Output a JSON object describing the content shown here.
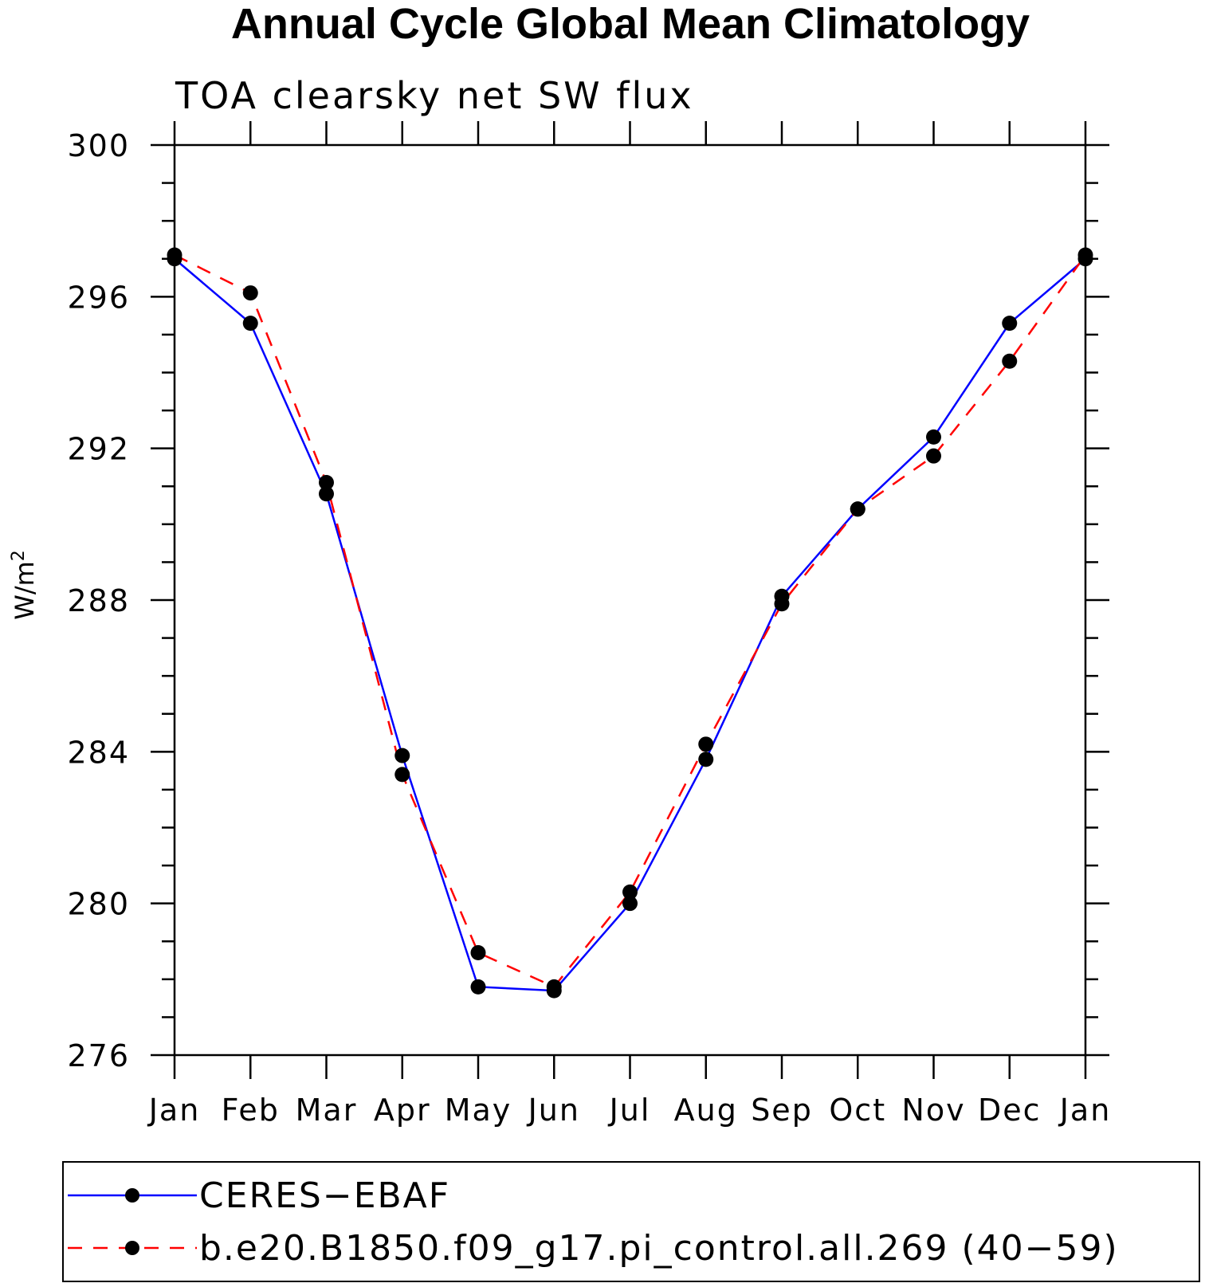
{
  "chart_data": {
    "type": "line",
    "title": "Annual Cycle Global Mean Climatology",
    "subtitle": "TOA clearsky net SW flux",
    "ylabel": "W/m",
    "ylabel_superscript": "2",
    "xlabel": "",
    "categories": [
      "Jan",
      "Feb",
      "Mar",
      "Apr",
      "May",
      "Jun",
      "Jul",
      "Aug",
      "Sep",
      "Oct",
      "Nov",
      "Dec",
      "Jan"
    ],
    "ylim": [
      276,
      300
    ],
    "yticks": [
      276,
      280,
      284,
      288,
      292,
      296,
      300
    ],
    "yticks_labels": [
      "276",
      "280",
      "284",
      "288",
      "292",
      "296",
      "300"
    ],
    "grid": false,
    "legend_position": "bottom",
    "series": [
      {
        "name": "CERES−EBAF",
        "color": "#0000ff",
        "line_style": "solid",
        "marker": "filled-circle",
        "values": [
          297.0,
          295.3,
          290.8,
          283.9,
          277.8,
          277.7,
          280.0,
          283.8,
          288.1,
          290.4,
          292.3,
          295.3,
          297.0
        ]
      },
      {
        "name": "b.e20.B1850.f09_g17.pi_control.all.269 (40−59)",
        "color": "#ff0000",
        "line_style": "dashed",
        "marker": "filled-circle",
        "values": [
          297.1,
          296.1,
          291.1,
          283.4,
          278.7,
          277.8,
          280.3,
          284.2,
          287.9,
          290.4,
          291.8,
          294.3,
          297.1
        ]
      }
    ]
  }
}
